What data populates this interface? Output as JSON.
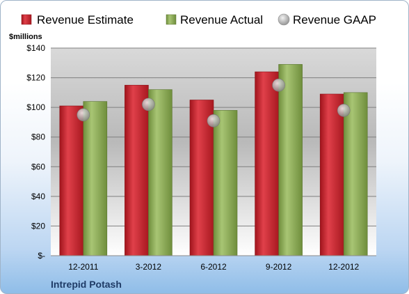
{
  "company": "Intrepid Potash",
  "chart_data": {
    "type": "bar",
    "title": "",
    "xlabel": "",
    "ylabel": "$millions",
    "categories": [
      "12-2011",
      "3-2012",
      "6-2012",
      "9-2012",
      "12-2012"
    ],
    "series": [
      {
        "name": "Revenue Estimate",
        "kind": "bar",
        "color": "#c8202a",
        "values": [
          101,
          115,
          105,
          124,
          109
        ]
      },
      {
        "name": "Revenue Actual",
        "kind": "bar",
        "color": "#8aab52",
        "values": [
          104,
          112,
          98,
          129,
          110
        ]
      },
      {
        "name": "Revenue GAAP",
        "kind": "marker",
        "color": "#a9a9a9",
        "values": [
          95,
          102,
          91,
          115,
          98
        ]
      }
    ],
    "ylim": [
      0,
      140
    ],
    "yticks": [
      0,
      20,
      40,
      60,
      80,
      100,
      120,
      140
    ],
    "ytick_labels": [
      "$-",
      "$20",
      "$40",
      "$60",
      "$80",
      "$100",
      "$120",
      "$140"
    ],
    "grid": true,
    "legend_position": "top"
  }
}
